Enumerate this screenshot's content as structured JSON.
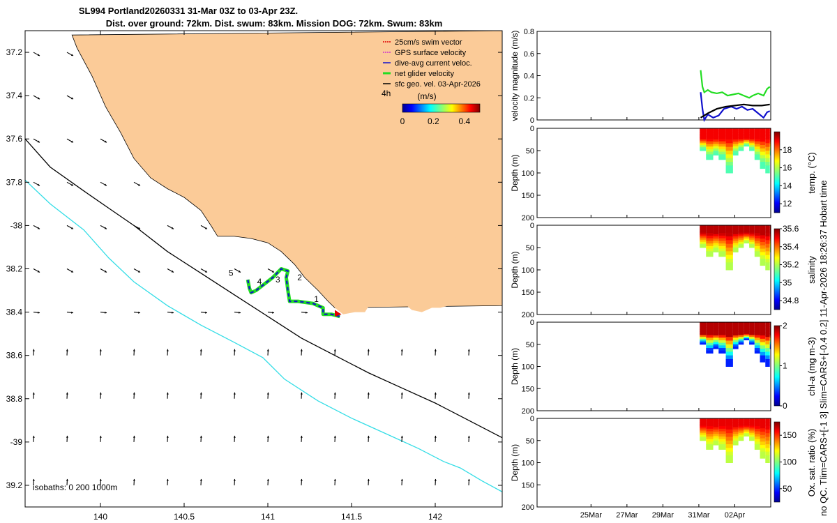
{
  "title_line1": "SL994 Portland20260331 31-Mar 03Z to 03-Apr 23Z.",
  "title_line2": "Dist. over ground: 72km. Dist. swum: 83km. Mission DOG: 72km. Swum: 83km",
  "side_note": "no QC. Tlim=CARS+[-1 3] Slim=CARS+[-0.4 0.2] 11-Apr-2026 18:26:37 Hobart time",
  "colors": {
    "land": "#fbcb98",
    "isobath_200": "#000000",
    "isobath_1000": "#33dde6",
    "swim_vector": "#e00000",
    "gps_velocity": "#cc33cc",
    "dive_avg": "#1010cc",
    "net_glider": "#22dd22",
    "sfc_geo": "#000000"
  },
  "chart_data": [
    {
      "type": "map",
      "name": "glider-track-map",
      "xlim": [
        139.55,
        142.4
      ],
      "ylim": [
        -39.3,
        -37.1
      ],
      "x_ticks": [
        140,
        140.5,
        141,
        141.5,
        142
      ],
      "x_tick_labels": [
        "140",
        "140.5",
        "141",
        "141.5",
        "142"
      ],
      "y_ticks": [
        -37.2,
        -37.4,
        -37.6,
        -37.8,
        -38,
        -38.2,
        -38.4,
        -38.6,
        -38.8,
        -39,
        -39.2
      ],
      "y_tick_labels": [
        "37.2",
        "37.4",
        "37.6",
        "37.8",
        "-38",
        "38.2",
        "38.4",
        "38.6",
        "38.8",
        "-39",
        "39.2"
      ],
      "legend": {
        "placement": "top-right",
        "items": [
          {
            "label": "25cm/s swim vector",
            "color_key": "swim_vector"
          },
          {
            "label": "GPS surface velocity",
            "color_key": "gps_velocity"
          },
          {
            "label": "dive-avg current veloc.",
            "color_key": "dive_avg"
          },
          {
            "label": "net glider velocity",
            "color_key": "net_glider"
          },
          {
            "label": "sfc geo. vel. 03-Apr-2026",
            "color_key": "sfc_geo"
          }
        ],
        "vector_scale_label": "4h",
        "colorbar_unit": "(m/s)",
        "colorbar_range": [
          0,
          0.5
        ],
        "colorbar_ticks": [
          0,
          0.2,
          0.4
        ],
        "colorbar_tick_labels": [
          "0",
          "0.2",
          "0.4"
        ]
      },
      "isobath_note": "isobaths: 0   200  1000m",
      "coastline": [
        [
          141.4,
          -38.38
        ],
        [
          141.36,
          -38.35
        ],
        [
          141.3,
          -38.3
        ],
        [
          141.22,
          -38.24
        ],
        [
          141.16,
          -38.18
        ],
        [
          141.08,
          -38.12
        ],
        [
          141.0,
          -38.08
        ],
        [
          140.9,
          -38.06
        ],
        [
          140.8,
          -38.05
        ],
        [
          140.7,
          -38.05
        ],
        [
          140.66,
          -38.0
        ],
        [
          140.6,
          -37.93
        ],
        [
          140.5,
          -37.87
        ],
        [
          140.4,
          -37.83
        ],
        [
          140.3,
          -37.78
        ],
        [
          140.2,
          -37.69
        ],
        [
          140.12,
          -37.57
        ],
        [
          140.03,
          -37.45
        ],
        [
          139.95,
          -37.31
        ],
        [
          139.86,
          -37.18
        ],
        [
          139.83,
          -37.12
        ]
      ],
      "coastline_east": [
        [
          141.4,
          -38.38
        ],
        [
          141.45,
          -38.41
        ],
        [
          141.52,
          -38.4
        ],
        [
          141.58,
          -38.4
        ],
        [
          141.62,
          -38.35
        ],
        [
          141.68,
          -38.32
        ],
        [
          141.75,
          -38.33
        ],
        [
          141.8,
          -38.35
        ],
        [
          141.86,
          -38.39
        ],
        [
          141.92,
          -38.4
        ],
        [
          141.98,
          -38.38
        ],
        [
          142.03,
          -38.38
        ],
        [
          142.08,
          -38.37
        ],
        [
          142.14,
          -38.37
        ],
        [
          142.2,
          -38.36
        ]
      ],
      "isobath_200m": [
        [
          139.55,
          -37.6
        ],
        [
          139.7,
          -37.73
        ],
        [
          139.9,
          -37.84
        ],
        [
          140.05,
          -37.92
        ],
        [
          140.2,
          -38.0
        ],
        [
          140.4,
          -38.12
        ],
        [
          140.6,
          -38.22
        ],
        [
          140.8,
          -38.32
        ],
        [
          141.0,
          -38.42
        ],
        [
          141.2,
          -38.52
        ],
        [
          141.4,
          -38.6
        ],
        [
          141.6,
          -38.68
        ],
        [
          141.8,
          -38.75
        ],
        [
          142.0,
          -38.82
        ],
        [
          142.2,
          -38.9
        ],
        [
          142.4,
          -38.98
        ]
      ],
      "isobath_1000m": [
        [
          139.55,
          -37.79
        ],
        [
          139.7,
          -37.9
        ],
        [
          139.9,
          -38.02
        ],
        [
          140.05,
          -38.15
        ],
        [
          140.2,
          -38.26
        ],
        [
          140.4,
          -38.37
        ],
        [
          140.6,
          -38.46
        ],
        [
          140.8,
          -38.54
        ],
        [
          140.97,
          -38.61
        ],
        [
          141.1,
          -38.71
        ],
        [
          141.3,
          -38.81
        ],
        [
          141.5,
          -38.89
        ],
        [
          141.7,
          -38.96
        ],
        [
          141.9,
          -39.03
        ],
        [
          142.05,
          -39.09
        ],
        [
          142.15,
          -39.12
        ],
        [
          142.28,
          -39.18
        ],
        [
          142.4,
          -39.23
        ]
      ],
      "glider_track": [
        [
          141.43,
          -38.42
        ],
        [
          141.38,
          -38.41
        ],
        [
          141.33,
          -38.41
        ],
        [
          141.33,
          -38.38
        ],
        [
          141.27,
          -38.36
        ],
        [
          141.18,
          -38.35
        ],
        [
          141.13,
          -38.35
        ],
        [
          141.12,
          -38.3
        ],
        [
          141.11,
          -38.24
        ],
        [
          141.12,
          -38.21
        ],
        [
          141.08,
          -38.2
        ],
        [
          141.03,
          -38.24
        ],
        [
          140.98,
          -38.27
        ],
        [
          140.93,
          -38.3
        ],
        [
          140.9,
          -38.31
        ],
        [
          140.89,
          -38.29
        ],
        [
          140.88,
          -38.25
        ]
      ],
      "waypoints": [
        {
          "label": "1",
          "x": 141.29,
          "y": -38.34
        },
        {
          "label": "2",
          "x": 141.19,
          "y": -38.24
        },
        {
          "label": "3",
          "x": 141.06,
          "y": -38.25
        },
        {
          "label": "4",
          "x": 140.95,
          "y": -38.26
        },
        {
          "label": "5",
          "x": 140.78,
          "y": -38.22
        }
      ]
    },
    {
      "type": "line",
      "name": "velocity-magnitude",
      "ylabel": "velocity magnitude (m/s)",
      "xlim": [
        22,
        35
      ],
      "ylim": [
        0,
        0.8
      ],
      "y_ticks": [
        0,
        0.2,
        0.4,
        0.6,
        0.8
      ],
      "y_tick_labels": [
        "0",
        "0.2",
        "0.4",
        "0.6",
        "0.8"
      ],
      "series": [
        {
          "color_key": "net_glider",
          "x": [
            31.1,
            31.2,
            31.3,
            31.5,
            31.7,
            32.0,
            32.3,
            32.6,
            32.9,
            33.2,
            33.5,
            33.8,
            34.0,
            34.3,
            34.6,
            34.8,
            34.95
          ],
          "y": [
            0.45,
            0.3,
            0.25,
            0.27,
            0.25,
            0.24,
            0.25,
            0.22,
            0.23,
            0.24,
            0.22,
            0.2,
            0.22,
            0.24,
            0.22,
            0.28,
            0.3
          ]
        },
        {
          "color_key": "dive_avg",
          "x": [
            31.1,
            31.2,
            31.3,
            31.5,
            31.8,
            32.1,
            32.4,
            32.8,
            33.1,
            33.4,
            33.7,
            34.0,
            34.3,
            34.6,
            34.8,
            34.95
          ],
          "y": [
            0.25,
            0.1,
            0.0,
            0.05,
            0.02,
            0.04,
            0.1,
            0.12,
            0.1,
            0.12,
            0.09,
            0.1,
            0.06,
            0.02,
            0.07,
            0.08
          ]
        },
        {
          "color_key": "sfc_geo",
          "x": [
            31.1,
            31.5,
            32.0,
            32.5,
            33.0,
            33.5,
            34.0,
            34.5,
            34.95
          ],
          "y": [
            0.02,
            0.06,
            0.1,
            0.12,
            0.13,
            0.14,
            0.13,
            0.13,
            0.14
          ]
        }
      ]
    },
    {
      "type": "heatmap",
      "name": "temperature-section",
      "ylabel": "Depth (m)",
      "colorbar_label": "temp. (°C)",
      "ylim": [
        200,
        0
      ],
      "y_ticks": [
        0,
        50,
        100,
        150,
        200
      ],
      "y_tick_labels": [
        "0",
        "50",
        "100",
        "150",
        "200"
      ],
      "color_range": [
        11,
        20
      ],
      "colorbar_ticks": [
        12,
        14,
        16,
        18
      ],
      "colorbar_tick_labels": [
        "12",
        "14",
        "16",
        "18"
      ],
      "profile_days": [
        31.05,
        31.4,
        31.8,
        32.1,
        32.5,
        32.9,
        33.2,
        33.5,
        33.8,
        34.1,
        34.4,
        34.7,
        34.95
      ],
      "profile_max_depth": [
        50,
        70,
        60,
        70,
        100,
        60,
        50,
        40,
        50,
        70,
        90,
        100,
        60
      ],
      "surface_value": 19,
      "bottom_value": 15,
      "mixed_layer_depth": 22
    },
    {
      "type": "heatmap",
      "name": "salinity-section",
      "ylabel": "Depth (m)",
      "colorbar_label": "salinity",
      "ylim": [
        200,
        0
      ],
      "y_ticks": [
        0,
        50,
        100,
        150,
        200
      ],
      "y_tick_labels": [
        "0",
        "50",
        "100",
        "150",
        "200"
      ],
      "color_range": [
        34.7,
        35.6
      ],
      "colorbar_ticks": [
        34.8,
        35,
        35.2,
        35.4,
        35.6
      ],
      "colorbar_tick_labels": [
        "34.8",
        "35",
        "35.2",
        "35.4",
        "35.6"
      ],
      "profile_days": [
        31.05,
        31.4,
        31.8,
        32.1,
        32.5,
        32.9,
        33.2,
        33.5,
        33.8,
        34.1,
        34.4,
        34.7,
        34.95
      ],
      "profile_max_depth": [
        50,
        70,
        60,
        70,
        100,
        60,
        50,
        40,
        50,
        70,
        90,
        100,
        60
      ],
      "surface_value": 35.55,
      "bottom_value": 35.2,
      "mixed_layer_depth": 15
    },
    {
      "type": "heatmap",
      "name": "chlorophyll-section",
      "ylabel": "Depth (m)",
      "colorbar_label": "chl-a (mg m-3)",
      "ylim": [
        200,
        0
      ],
      "y_ticks": [
        0,
        50,
        100,
        150,
        200
      ],
      "y_tick_labels": [
        "0",
        "50",
        "100",
        "150",
        "200"
      ],
      "color_range": [
        0,
        2
      ],
      "colorbar_ticks": [
        0,
        1,
        2
      ],
      "colorbar_tick_labels": [
        "0",
        "1",
        "2"
      ],
      "profile_days": [
        31.05,
        31.4,
        31.8,
        32.1,
        32.5,
        32.9,
        33.2,
        33.5,
        33.8,
        34.1,
        34.4,
        34.7,
        34.95
      ],
      "profile_max_depth": [
        50,
        70,
        60,
        70,
        100,
        60,
        50,
        40,
        50,
        70,
        90,
        100,
        60
      ],
      "surface_value": 1.9,
      "bottom_value": 0.3,
      "mixed_layer_depth": 25
    },
    {
      "type": "heatmap",
      "name": "oxygen-section",
      "ylabel": "Depth (m)",
      "colorbar_label": "Ox. sat. ratio (%)",
      "ylim": [
        200,
        0
      ],
      "y_ticks": [
        0,
        50,
        100,
        150,
        200
      ],
      "y_tick_labels": [
        "0",
        "50",
        "100",
        "150",
        "200"
      ],
      "x_ticks": [
        25,
        27,
        29,
        31,
        33
      ],
      "x_tick_labels": [
        "25Mar",
        "27Mar",
        "29Mar",
        "31Mar",
        "02Apr"
      ],
      "color_range": [
        25,
        175
      ],
      "colorbar_ticks": [
        50,
        100,
        150
      ],
      "colorbar_tick_labels": [
        "50",
        "100",
        "150"
      ],
      "profile_days": [
        31.05,
        31.4,
        31.8,
        32.1,
        32.5,
        32.9,
        33.2,
        33.5,
        33.8,
        34.1,
        34.4,
        34.7,
        34.95
      ],
      "profile_max_depth": [
        50,
        70,
        60,
        70,
        100,
        60,
        50,
        40,
        50,
        70,
        90,
        100,
        60
      ],
      "surface_value": 160,
      "bottom_value": 110,
      "mixed_layer_depth": 15
    }
  ]
}
